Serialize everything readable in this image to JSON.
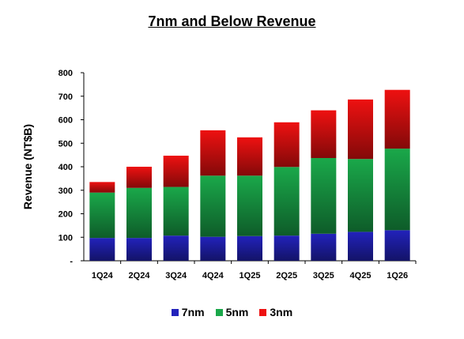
{
  "chart_data": {
    "type": "bar",
    "stacked": true,
    "title": "7nm and Below Revenue",
    "xlabel": "",
    "ylabel": "Revenue (NT$B)",
    "ylim": [
      0,
      800
    ],
    "yticks": [
      0,
      100,
      200,
      300,
      400,
      500,
      600,
      700,
      800
    ],
    "ytick_labels": [
      "-",
      "100",
      "200",
      "300",
      "400",
      "500",
      "600",
      "700",
      "800"
    ],
    "categories": [
      "1Q24",
      "2Q24",
      "3Q24",
      "4Q24",
      "1Q25",
      "2Q25",
      "3Q25",
      "4Q25",
      "1Q26"
    ],
    "series": [
      {
        "name": "7nm",
        "color": "#2222bb",
        "values": [
          97,
          97,
          107,
          102,
          105,
          107,
          115,
          123,
          130
        ]
      },
      {
        "name": "5nm",
        "color": "#1aa84a",
        "values": [
          193,
          213,
          207,
          260,
          257,
          292,
          322,
          310,
          347
        ]
      },
      {
        "name": "3nm",
        "color": "#ee1111",
        "values": [
          45,
          90,
          133,
          193,
          163,
          190,
          203,
          253,
          250
        ]
      }
    ],
    "legend_position": "bottom",
    "grid": false
  }
}
